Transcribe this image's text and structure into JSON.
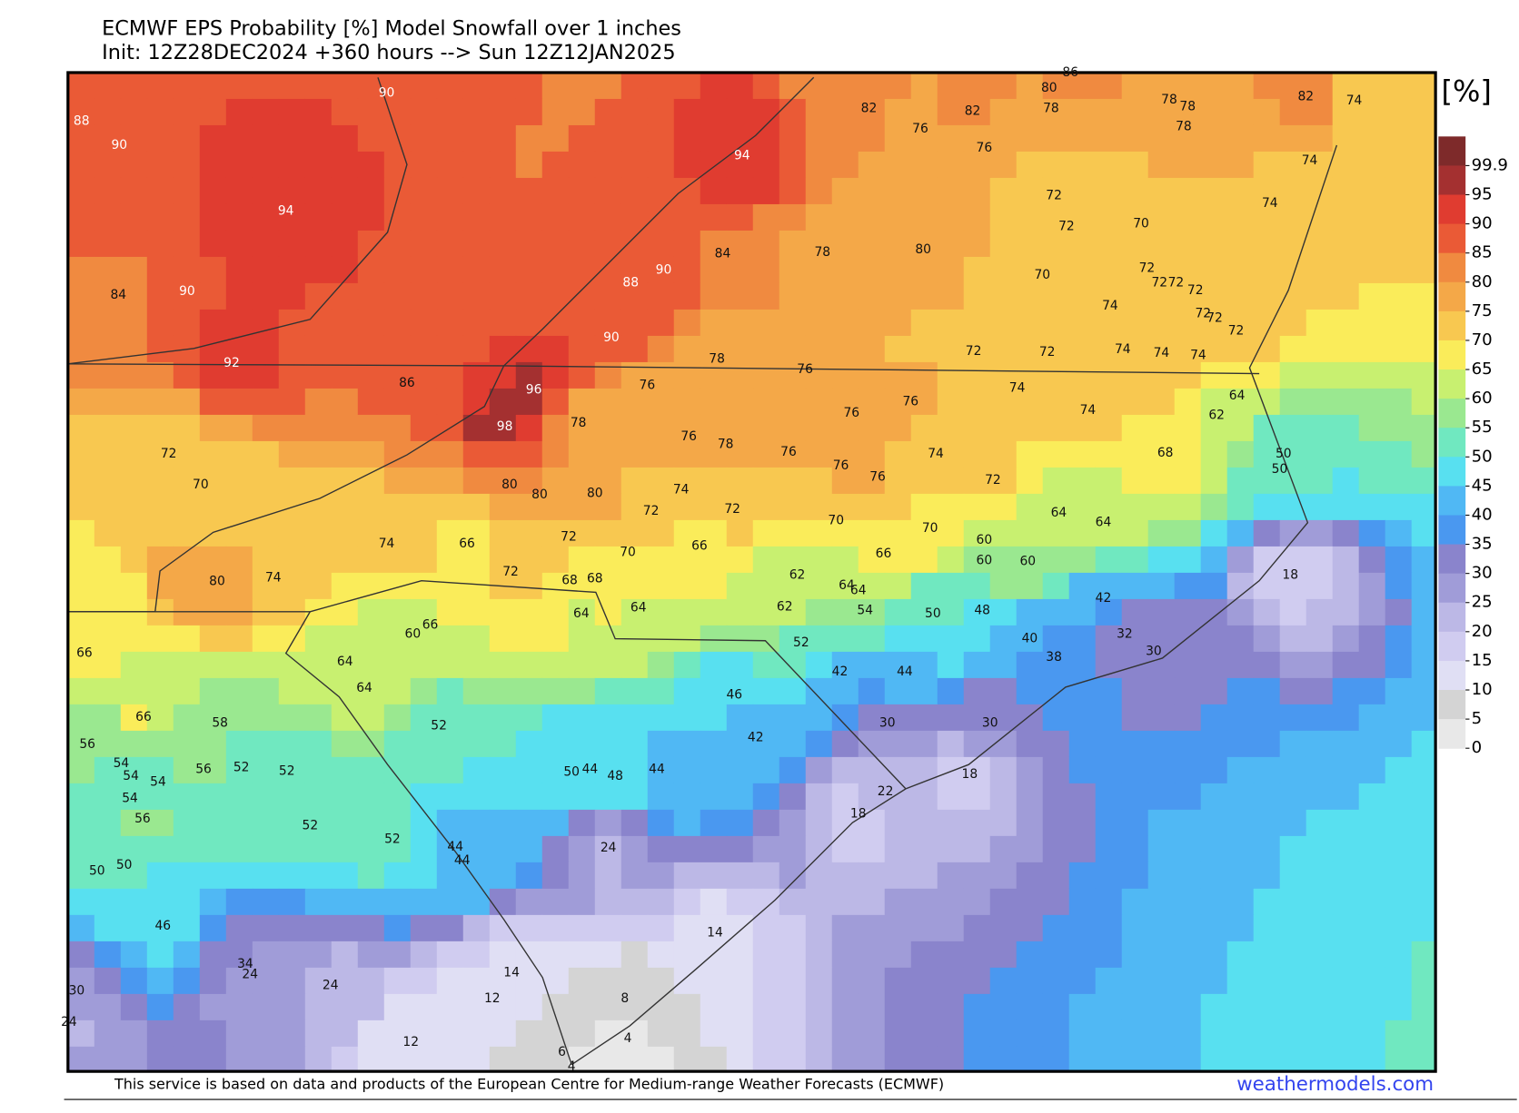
{
  "header": {
    "title": "ECMWF EPS Probability [%] Model Snowfall over 1 inches",
    "subtitle": "Init: 12Z28DEC2024 +360 hours --> Sun 12Z12JAN2025"
  },
  "map": {
    "type": "probability-field",
    "unit_label": "[%]",
    "labels": [
      86,
      80,
      78,
      78,
      78,
      78,
      82,
      74,
      82,
      82,
      76,
      76,
      94,
      90,
      88,
      90,
      94,
      74,
      74,
      72,
      72,
      70,
      84,
      78,
      80,
      90,
      88,
      84,
      90,
      70,
      72,
      72,
      72,
      72,
      74,
      72,
      72,
      72,
      90,
      92,
      78,
      76,
      72,
      72,
      74,
      74,
      74,
      86,
      96,
      76,
      74,
      64,
      76,
      76,
      74,
      62,
      98,
      78,
      76,
      78,
      76,
      76,
      74,
      76,
      72,
      68,
      50,
      50,
      72,
      70,
      80,
      80,
      80,
      74,
      72,
      72,
      70,
      64,
      64,
      70,
      60,
      66,
      60,
      60,
      74,
      66,
      72,
      70,
      66,
      72,
      68,
      68,
      80,
      74,
      18,
      62,
      64,
      64,
      42,
      64,
      64,
      62,
      54,
      50,
      48,
      60,
      66,
      32,
      40,
      52,
      30,
      38,
      66,
      64,
      42,
      44,
      64,
      46,
      66,
      58,
      52,
      30,
      30,
      42,
      56,
      54,
      54,
      54,
      56,
      52,
      52,
      50,
      44,
      48,
      44,
      18,
      22,
      54,
      56,
      18,
      52,
      52,
      44,
      44,
      24,
      50,
      50,
      46,
      14,
      34,
      24,
      14,
      30,
      24,
      12,
      8,
      24,
      12,
      4,
      6,
      4
    ],
    "colorbar": {
      "ticks": [
        99.9,
        95,
        90,
        85,
        80,
        75,
        70,
        65,
        60,
        55,
        50,
        45,
        40,
        35,
        30,
        25,
        20,
        15,
        10,
        5,
        0
      ],
      "colors": [
        "#7e2a2a",
        "#a43030",
        "#e03c30",
        "#ea5a36",
        "#f08a40",
        "#f4a848",
        "#f8c850",
        "#faec5a",
        "#c8f070",
        "#9ae890",
        "#70e8c0",
        "#58e0f0",
        "#50b8f4",
        "#4a98f0",
        "#8a84cc",
        "#a09cd8",
        "#bcb8e6",
        "#d0ccf0",
        "#e0dff4",
        "#d4d4d4",
        "#e8e8e8"
      ]
    }
  },
  "footer": {
    "credit": "This service is based on data and products of the European Centre for Medium-range Weather Forecasts (ECMWF)",
    "brand": "weathermodels.com"
  }
}
